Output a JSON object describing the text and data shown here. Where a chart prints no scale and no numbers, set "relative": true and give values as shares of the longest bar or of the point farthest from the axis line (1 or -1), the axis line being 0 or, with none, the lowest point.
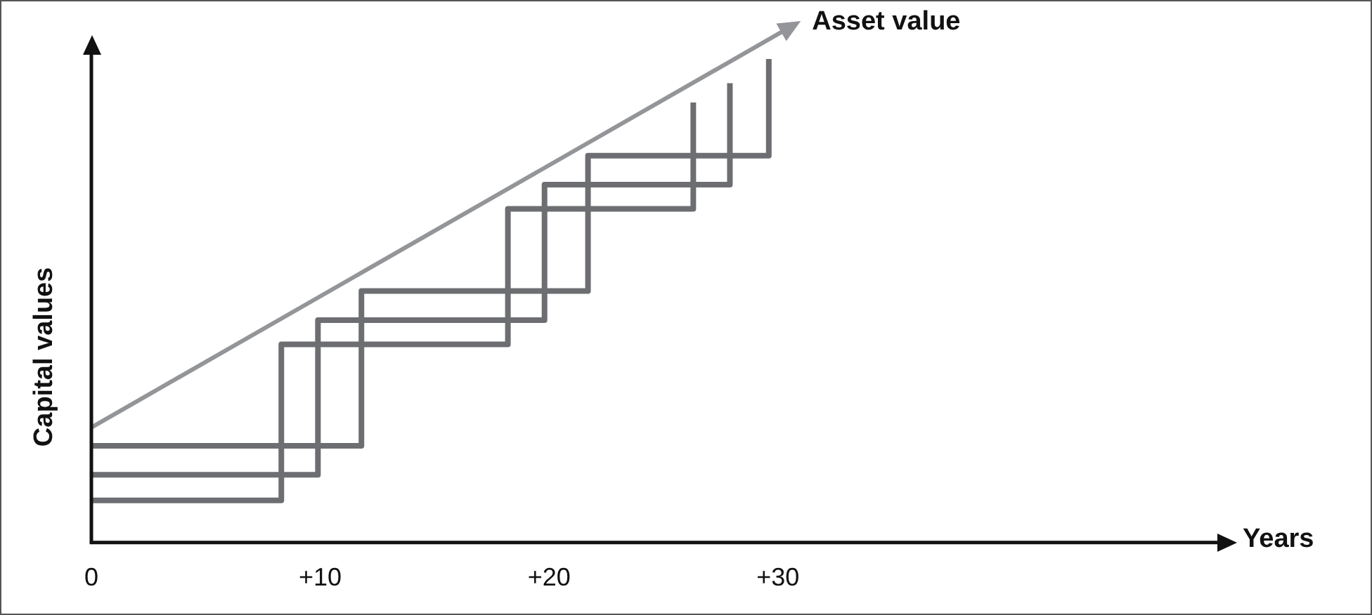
{
  "chart_data": {
    "type": "line",
    "xlabel": "Years",
    "ylabel": "Capital values",
    "annotations": [
      "Asset value"
    ],
    "relative": true,
    "legend": false,
    "marker": "none",
    "xlim": [
      0,
      49.2
    ],
    "xticks": [
      0,
      {
        "value": 10,
        "label": "+10"
      },
      {
        "value": 20,
        "label": "+20"
      },
      {
        "value": 30,
        "label": "+30"
      }
    ],
    "series": [
      {
        "color": "#6d6e71",
        "x": [
          0,
          8.3,
          8.3,
          18.2,
          18.2,
          26.3,
          26.3
        ],
        "values": [
          0.087,
          0.087,
          0.41,
          0.41,
          0.69,
          0.69,
          0.91
        ]
      },
      {
        "color": "#6d6e71",
        "x": [
          0,
          9.9,
          9.9,
          19.8,
          19.8,
          27.9,
          27.9
        ],
        "values": [
          0.14,
          0.14,
          0.46,
          0.46,
          0.74,
          0.74,
          0.95
        ]
      },
      {
        "color": "#6d6e71",
        "x": [
          0,
          11.8,
          11.8,
          21.7,
          21.7,
          29.6,
          29.6
        ],
        "values": [
          0.2,
          0.2,
          0.52,
          0.52,
          0.8,
          0.8,
          1
        ]
      }
    ]
  }
}
